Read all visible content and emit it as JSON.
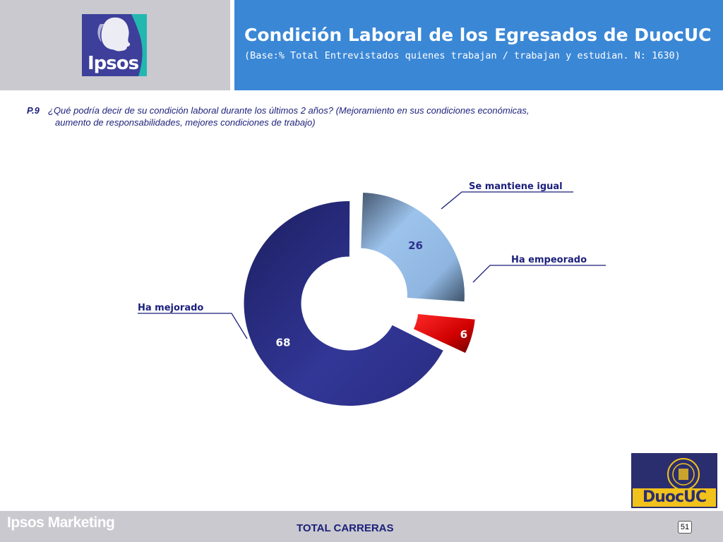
{
  "header": {
    "logo_text": "Ipsos",
    "title": "Condición Laboral de los Egresados de DuocUC",
    "subtitle": "(Base:% Total Entrevistados quienes trabajan / trabajan y estudian. N: 1630)"
  },
  "question": {
    "number": "P.9",
    "line1": "¿Qué podría decir de su condición laboral durante los últimos 2 años? (Mejoramiento en sus condiciones económicas,",
    "line2": "aumento de responsabilidades, mejores condiciones de trabajo)"
  },
  "chart_data": {
    "type": "pie",
    "categories": [
      "Se mantiene igual",
      "Ha empeorado",
      "Ha mejorado"
    ],
    "values": [
      26,
      6,
      68
    ],
    "colors": [
      "#7aa8d8",
      "#d80000",
      "#2e3090"
    ],
    "value_label_colors": [
      "#2e3090",
      "#ffffff",
      "#ffffff"
    ]
  },
  "footer": {
    "brand": "Ipsos Marketing",
    "center_text": "TOTAL CARRERAS",
    "page_number": "51",
    "duoc_logo_text": "DuocUC"
  },
  "colors": {
    "header_blue": "#3a87d6",
    "header_gray": "#c9c9cf",
    "text_navy": "#1b1f7a"
  }
}
